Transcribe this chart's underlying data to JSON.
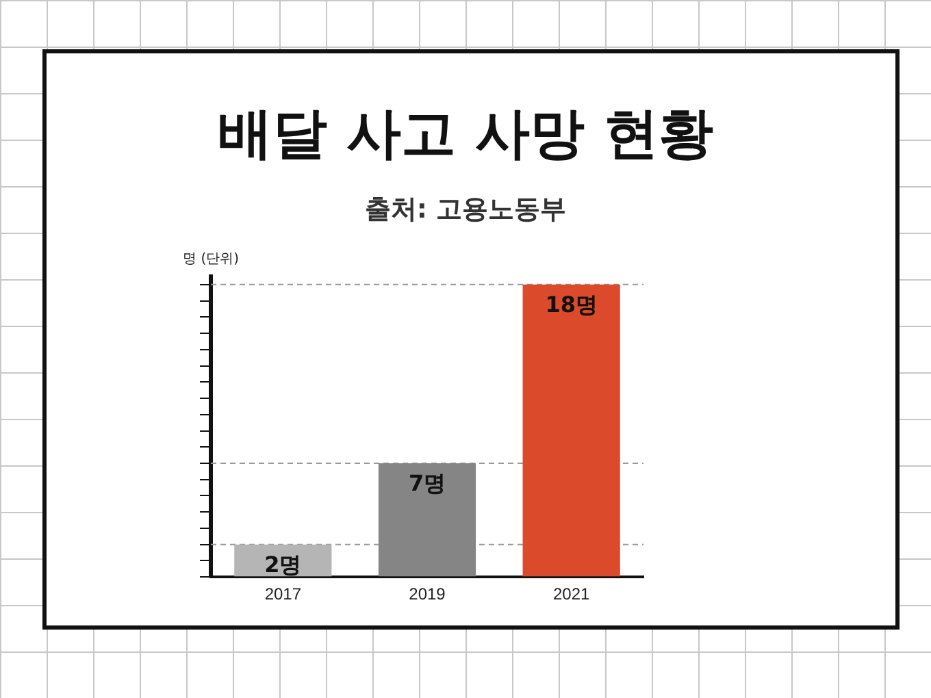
{
  "chart_data": {
    "type": "bar",
    "title": "배달 사고 사망 현황",
    "subtitle": "출처: 고용노동부",
    "ylabel": "명 (단위)",
    "categories": [
      "2017",
      "2019",
      "2021"
    ],
    "values": [
      2,
      7,
      18
    ],
    "colors": [
      "#b5b5b5",
      "#858585",
      "#db4a2b"
    ],
    "value_labels": [
      "2명",
      "7명",
      "18명"
    ],
    "ylim": [
      0,
      18.5
    ],
    "yticks": [
      {
        "value": 0,
        "label": null
      },
      {
        "value": 1,
        "label": null
      },
      {
        "value": 2,
        "label": null
      },
      {
        "value": 3,
        "label": null
      },
      {
        "value": 4,
        "label": null
      },
      {
        "value": 5,
        "label": null
      },
      {
        "value": 6,
        "label": null
      },
      {
        "value": 7,
        "label": null
      },
      {
        "value": 8,
        "label": null
      },
      {
        "value": 9,
        "label": null
      },
      {
        "value": 10,
        "label": null
      },
      {
        "value": 11,
        "label": null
      },
      {
        "value": 12,
        "label": null
      },
      {
        "value": 13,
        "label": null
      },
      {
        "value": 14,
        "label": null
      },
      {
        "value": 15,
        "label": null
      },
      {
        "value": 16,
        "label": null
      },
      {
        "value": 17,
        "label": null
      },
      {
        "value": 18,
        "label": null
      }
    ],
    "ref_lines": [
      {
        "axis": "y",
        "value": 2,
        "color": "#999999",
        "line_style": "dashed"
      },
      {
        "axis": "y",
        "value": 7,
        "color": "#999999",
        "line_style": "dashed"
      },
      {
        "axis": "y",
        "value": 18,
        "color": "#999999",
        "line_style": "dashed"
      }
    ],
    "grid": false,
    "legend": false
  }
}
